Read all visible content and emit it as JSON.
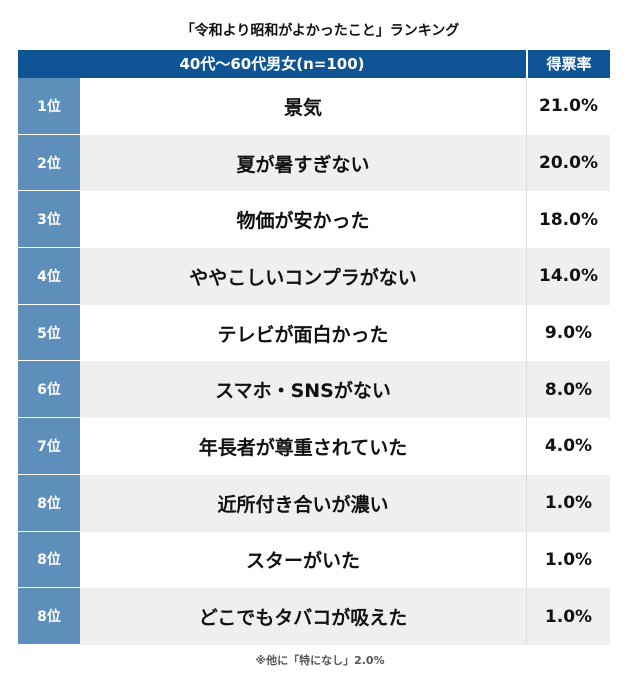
{
  "title": "「令和より昭和がよかったこと」ランキング",
  "header": {
    "main": "40代〜60代男女(n=100)",
    "rate": "得票率"
  },
  "rows": [
    {
      "rank": "1位",
      "item": "景気",
      "value": "21.0%"
    },
    {
      "rank": "2位",
      "item": "夏が暑すぎない",
      "value": "20.0%"
    },
    {
      "rank": "3位",
      "item": "物価が安かった",
      "value": "18.0%"
    },
    {
      "rank": "4位",
      "item": "ややこしいコンプラがない",
      "value": "14.0%"
    },
    {
      "rank": "5位",
      "item": "テレビが面白かった",
      "value": "9.0%"
    },
    {
      "rank": "6位",
      "item": "スマホ・SNSがない",
      "value": "8.0%"
    },
    {
      "rank": "7位",
      "item": "年長者が尊重されていた",
      "value": "4.0%"
    },
    {
      "rank": "8位",
      "item": "近所付き合いが濃い",
      "value": "1.0%"
    },
    {
      "rank": "8位",
      "item": "スターがいた",
      "value": "1.0%"
    },
    {
      "rank": "8位",
      "item": "どこでもタバコが吸えた",
      "value": "1.0%"
    }
  ],
  "note": "※他に「特になし」2.0%"
}
